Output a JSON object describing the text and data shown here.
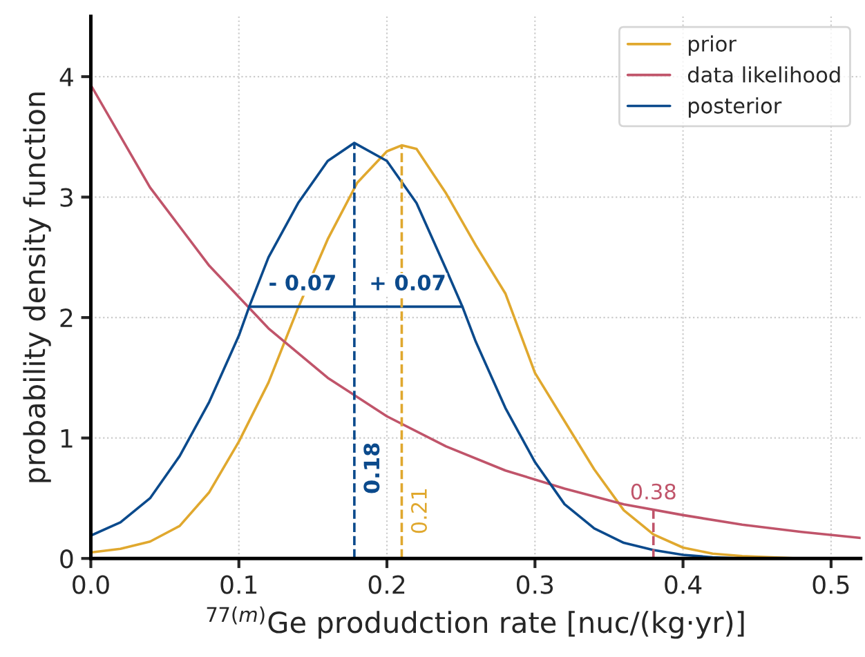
{
  "chart_data": {
    "type": "line",
    "xlabel": "$^{77(m)}$Ge produdction rate [nuc/(kg·yr)]",
    "ylabel": "probability density function",
    "xlim": [
      0.0,
      0.52
    ],
    "ylim": [
      0,
      4.5
    ],
    "xticks": [
      {
        "value": 0,
        "label": "0.0"
      },
      0.1,
      0.2,
      0.3,
      0.4,
      0.5
    ],
    "yticks": [
      0,
      1,
      2,
      3,
      4
    ],
    "grid": true,
    "legend": "top right",
    "line_style": "solid",
    "marker": "none",
    "series": [
      {
        "name": "prior",
        "color": "#e0a82e",
        "x": [
          0,
          0.02,
          0.04,
          0.06,
          0.08,
          0.1,
          0.12,
          0.14,
          0.16,
          0.18,
          0.2,
          0.21,
          0.22,
          0.24,
          0.26,
          0.28,
          0.3,
          0.32,
          0.34,
          0.36,
          0.38,
          0.4,
          0.42,
          0.44,
          0.46,
          0.48
        ],
        "values": [
          0.05,
          0.08,
          0.14,
          0.27,
          0.55,
          0.97,
          1.46,
          2.08,
          2.65,
          3.12,
          3.38,
          3.43,
          3.4,
          3.03,
          2.6,
          2.2,
          1.54,
          1.14,
          0.74,
          0.4,
          0.2,
          0.09,
          0.04,
          0.02,
          0.01,
          0
        ]
      },
      {
        "name": "data likelihood",
        "color": "#c0546a",
        "x": [
          0,
          0.04,
          0.08,
          0.12,
          0.16,
          0.2,
          0.24,
          0.28,
          0.32,
          0.36,
          0.4,
          0.44,
          0.48,
          0.52
        ],
        "values": [
          3.93,
          3.08,
          2.43,
          1.91,
          1.5,
          1.18,
          0.93,
          0.73,
          0.58,
          0.45,
          0.36,
          0.28,
          0.22,
          0.17
        ]
      },
      {
        "name": "posterior",
        "color": "#0b4a8c",
        "x": [
          0,
          0.02,
          0.04,
          0.06,
          0.08,
          0.1,
          0.107,
          0.12,
          0.14,
          0.16,
          0.178,
          0.2,
          0.22,
          0.24,
          0.251,
          0.26,
          0.28,
          0.3,
          0.32,
          0.34,
          0.36,
          0.38,
          0.4,
          0.42,
          0.44
        ],
        "values": [
          0.19,
          0.3,
          0.5,
          0.85,
          1.3,
          1.85,
          2.09,
          2.5,
          2.95,
          3.3,
          3.45,
          3.3,
          2.95,
          2.4,
          2.09,
          1.8,
          1.25,
          0.8,
          0.45,
          0.25,
          0.13,
          0.07,
          0.03,
          0.01,
          0
        ]
      },
      {
        "color": "#0b4a8c",
        "x": [
          0.107,
          0.251
        ],
        "values": [
          2.09,
          2.09
        ]
      }
    ],
    "ref_lines": [
      {
        "axis": "x",
        "value": 0.178,
        "label": "0.18",
        "color": "#0b4a8c",
        "line_style": "dashed"
      },
      {
        "axis": "x",
        "value": 0.21,
        "label": "0.21",
        "color": "#e0a82e",
        "line_style": "dashed"
      },
      {
        "axis": "x",
        "value": 0.38,
        "label": "0.38",
        "color": "#c0546a",
        "line_style": "dashed"
      }
    ],
    "annotations": [
      {
        "text": "- 0.07",
        "x": 0.143,
        "y": 2.09
      },
      {
        "text": "+ 0.07",
        "x": 0.214,
        "y": 2.09
      }
    ]
  }
}
